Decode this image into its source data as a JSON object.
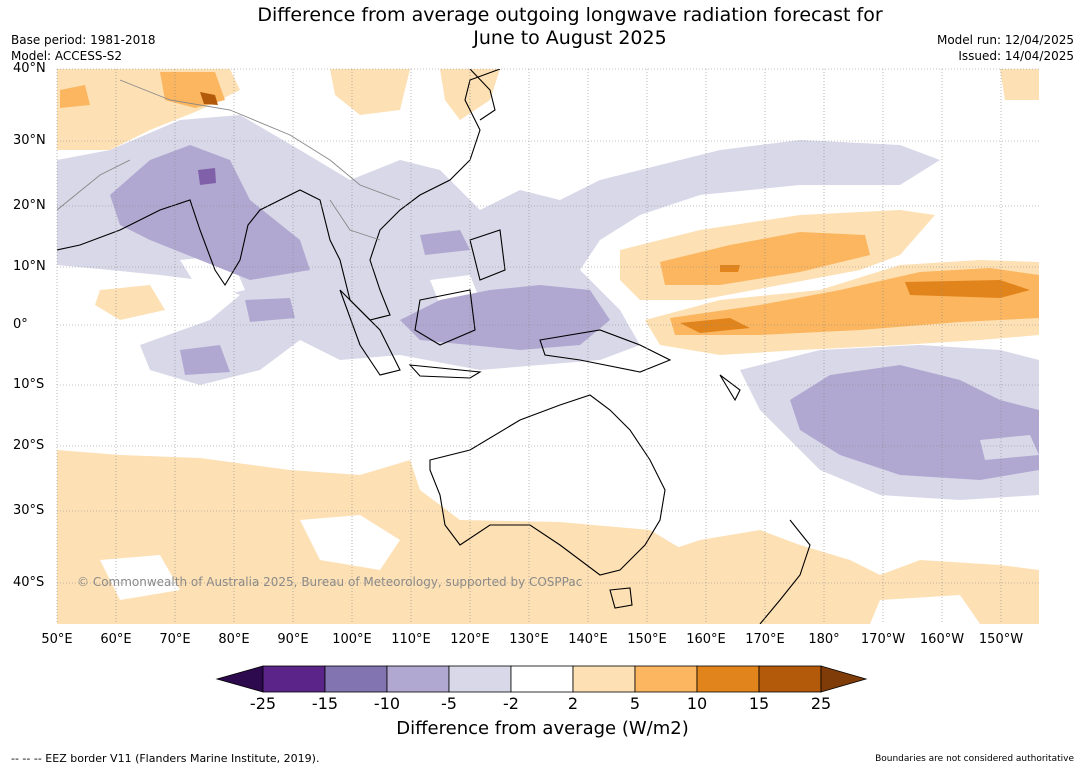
{
  "title_line1": "Difference from average outgoing longwave radiation forecast for",
  "title_line2": "June to August 2025",
  "base_period": "Base period: 1981-2018",
  "model": "Model: ACCESS-S2",
  "model_run": "Model run: 12/04/2025",
  "issued": "Issued: 14/04/2025",
  "lat_labels": [
    "40°N",
    "30°N",
    "20°N",
    "10°N",
    "0°",
    "10°S",
    "20°S",
    "30°S",
    "40°S"
  ],
  "lon_labels": [
    "50°E",
    "60°E",
    "70°E",
    "80°E",
    "90°E",
    "100°E",
    "110°E",
    "120°E",
    "130°E",
    "140°E",
    "150°E",
    "160°E",
    "170°E",
    "180°",
    "170°W",
    "160°W",
    "150°W"
  ],
  "copyright": "© Commonwealth of Australia 2025, Bureau of Meteorology, supported by COSPPac",
  "colorbar": {
    "ticks": [
      "-25",
      "-15",
      "-10",
      "-5",
      "-2",
      "2",
      "5",
      "10",
      "15",
      "25"
    ],
    "colors": [
      "#2d0a4e",
      "#5a2489",
      "#8273b1",
      "#b0a8d0",
      "#d8d8e9",
      "#ffffff",
      "#fde0b4",
      "#fbb65f",
      "#e2841c",
      "#b35a0a",
      "#7f3b08"
    ],
    "label": "Difference from average (W/m2)"
  },
  "footer_left": "--  --  -- EEZ border V11 (Flanders Marine Institute, 2019).",
  "footer_right": "Boundaries are not considered authoritative"
}
